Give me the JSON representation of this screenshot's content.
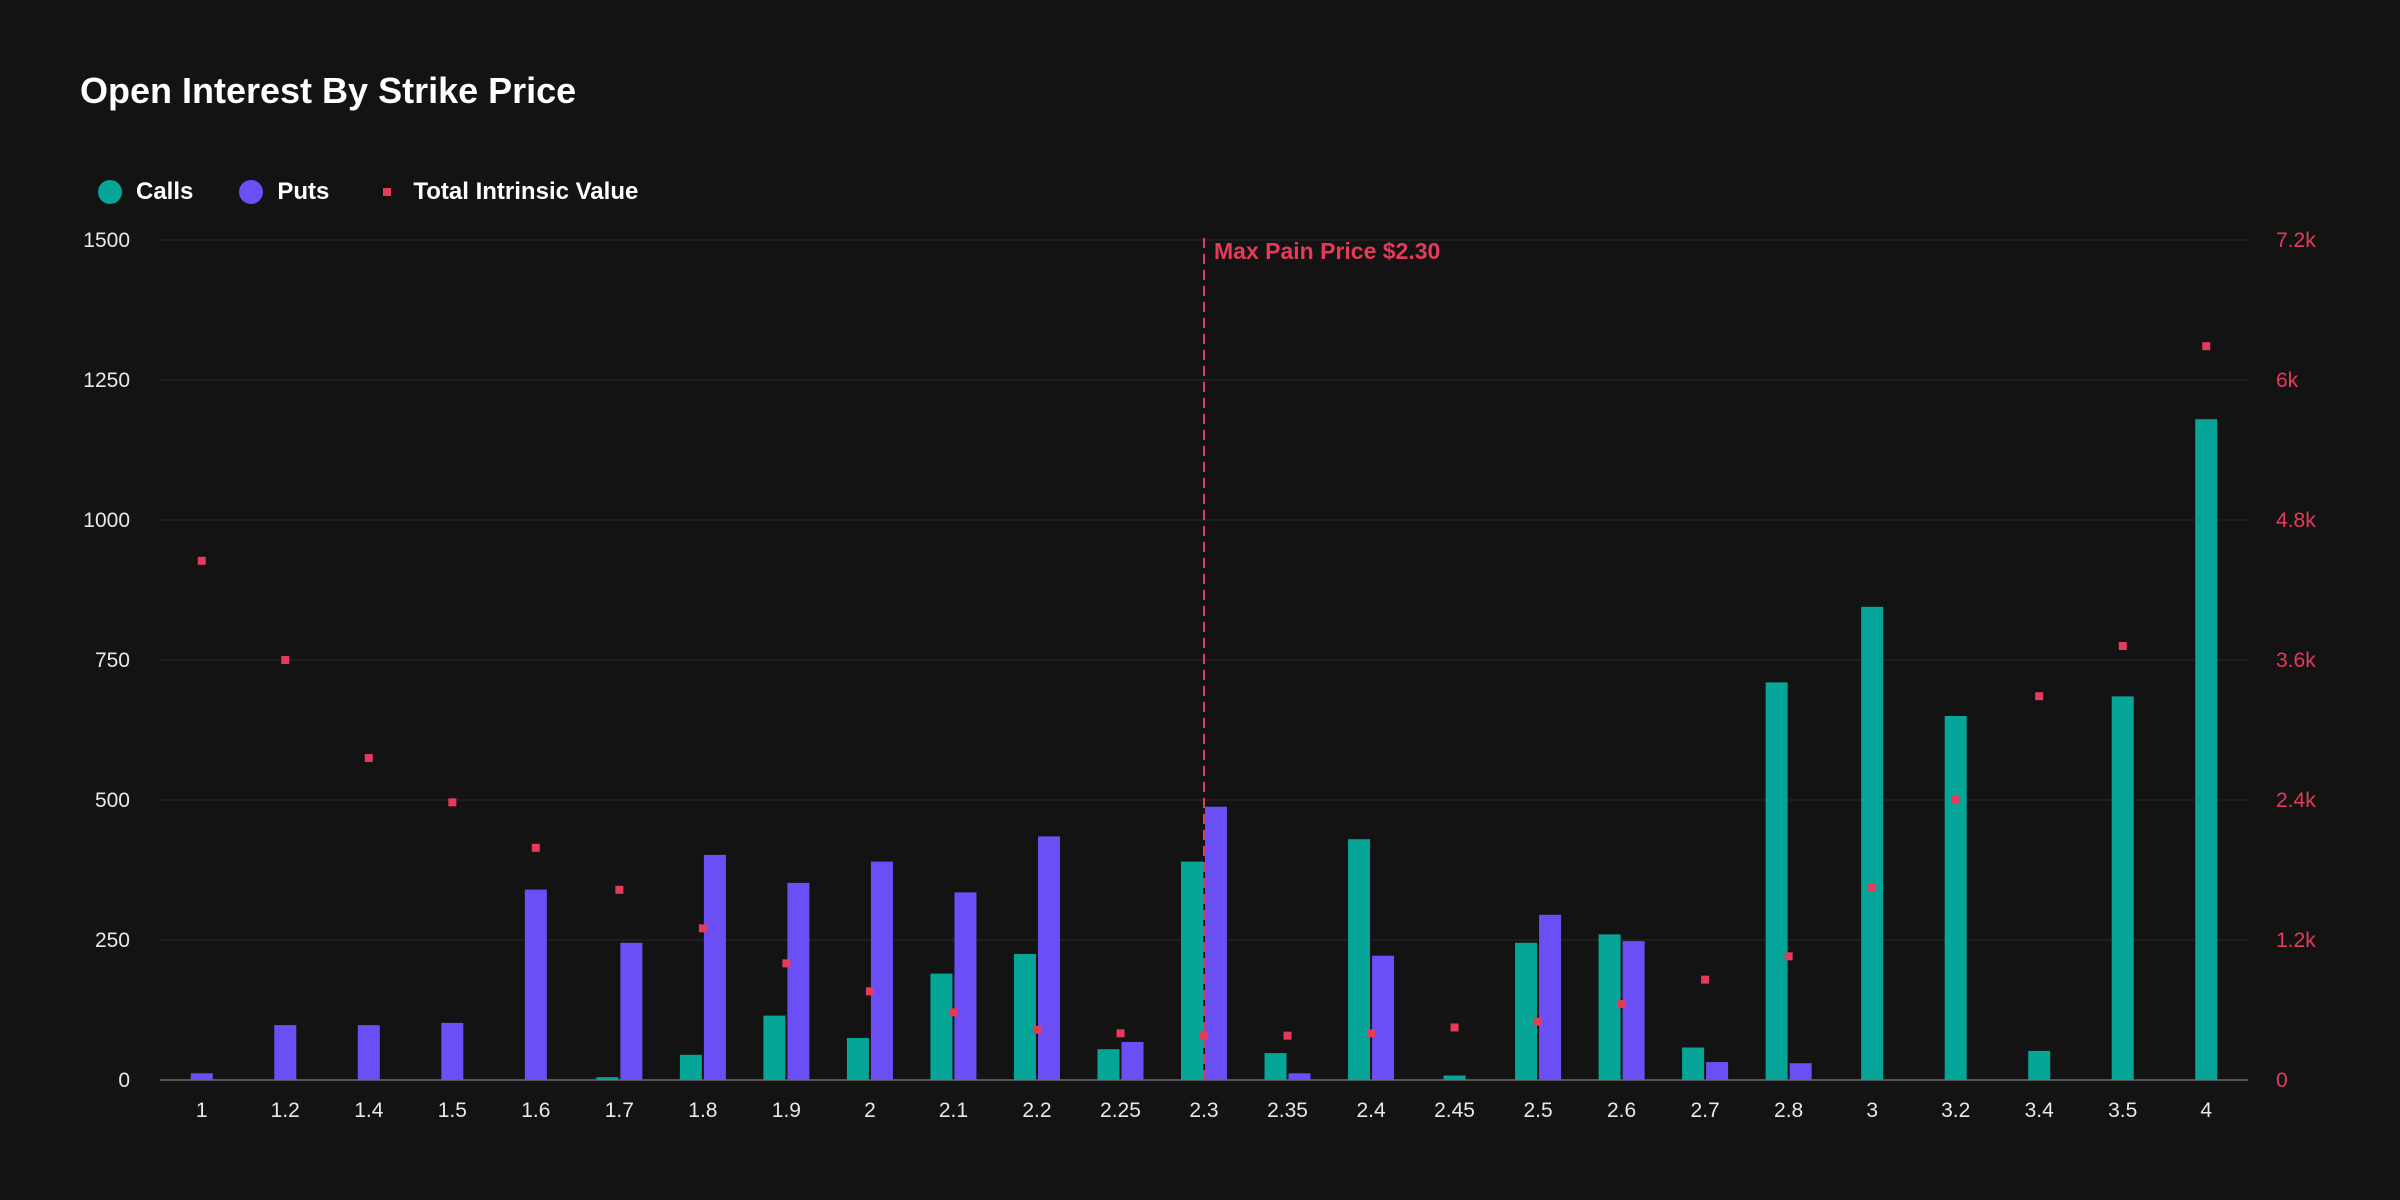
{
  "colors": {
    "background": "#131313",
    "calls": "#05a597",
    "puts": "#6b4ff5",
    "intrinsic": "#e63a5a",
    "grid": "#2a2a2a",
    "axis_text": "#e8e8e8"
  },
  "legend": {
    "calls": "Calls",
    "puts": "Puts",
    "intrinsic": "Total Intrinsic Value"
  },
  "chart_data": {
    "type": "bar",
    "title": "Open Interest By Strike Price",
    "categories": [
      "1",
      "1.2",
      "1.4",
      "1.5",
      "1.6",
      "1.7",
      "1.8",
      "1.9",
      "2",
      "2.1",
      "2.2",
      "2.25",
      "2.3",
      "2.35",
      "2.4",
      "2.45",
      "2.5",
      "2.6",
      "2.7",
      "2.8",
      "3",
      "3.2",
      "3.4",
      "3.5",
      "4"
    ],
    "series": [
      {
        "name": "Calls",
        "axis": "left",
        "values": [
          0,
          0,
          0,
          0,
          0,
          5,
          45,
          115,
          75,
          190,
          225,
          55,
          390,
          48,
          430,
          8,
          245,
          260,
          58,
          710,
          845,
          650,
          52,
          685,
          1180
        ]
      },
      {
        "name": "Puts",
        "axis": "left",
        "values": [
          12,
          98,
          98,
          102,
          340,
          245,
          402,
          352,
          390,
          335,
          435,
          68,
          488,
          12,
          222,
          0,
          295,
          248,
          32,
          30,
          0,
          0,
          0,
          0,
          0
        ]
      },
      {
        "name": "Total Intrinsic Value",
        "axis": "right",
        "type": "scatter",
        "values": [
          4450,
          3600,
          2760,
          2380,
          1990,
          1630,
          1300,
          1000,
          760,
          580,
          430,
          400,
          380,
          380,
          400,
          450,
          500,
          650,
          860,
          1060,
          1650,
          2400,
          3290,
          3720,
          6290
        ]
      }
    ],
    "y_left": {
      "range": [
        0,
        1500
      ],
      "ticks": [
        "0",
        "250",
        "500",
        "750",
        "1000",
        "1250",
        "1500"
      ]
    },
    "y_right": {
      "range": [
        0,
        7200
      ],
      "ticks": [
        "0",
        "1.2k",
        "2.4k",
        "3.6k",
        "4.8k",
        "6k",
        "7.2k"
      ]
    },
    "grid": true,
    "legend_position": "top-left",
    "annotation": {
      "label": "Max Pain Price $2.30",
      "category": "2.3"
    }
  }
}
